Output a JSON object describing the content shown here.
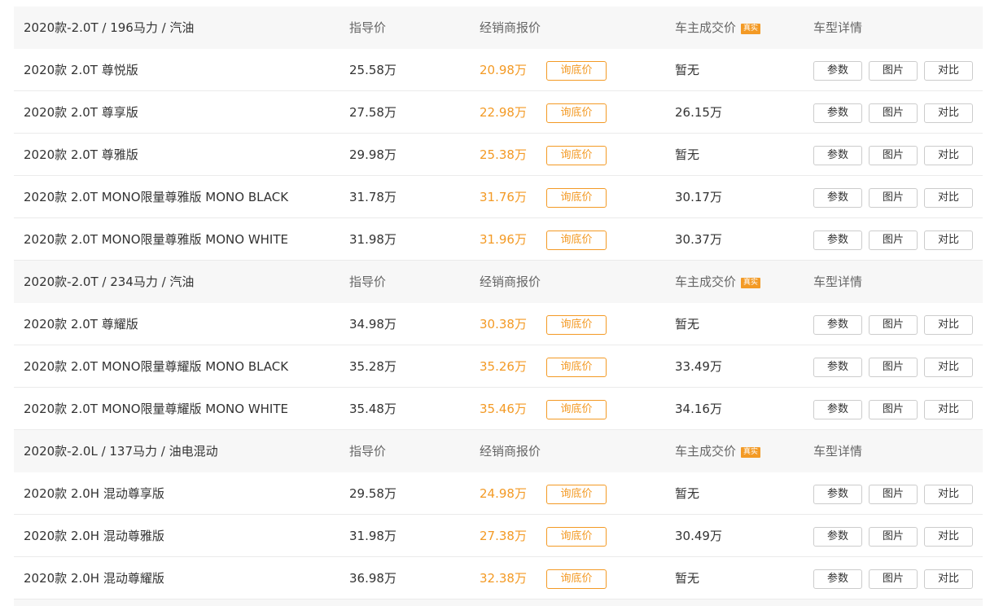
{
  "labels": {
    "guide": "指导价",
    "dealer": "经销商报价",
    "owner": "车主成交价",
    "badge": "真实",
    "detail": "车型详情",
    "ask": "询底价",
    "params": "参数",
    "photos": "图片",
    "compare": "对比"
  },
  "colors": {
    "accent": "#f39a25",
    "header_bg": "#f7f7f7"
  },
  "groups": [
    {
      "title": "2020款-2.0T / 196马力 / 汽油",
      "rows": [
        {
          "name": "2020款 2.0T 尊悦版",
          "guide": "25.58万",
          "dealer": "20.98万",
          "owner": "暂无"
        },
        {
          "name": "2020款 2.0T 尊享版",
          "guide": "27.58万",
          "dealer": "22.98万",
          "owner": "26.15万"
        },
        {
          "name": "2020款 2.0T 尊雅版",
          "guide": "29.98万",
          "dealer": "25.38万",
          "owner": "暂无"
        },
        {
          "name": "2020款 2.0T MONO限量尊雅版 MONO BLACK",
          "guide": "31.78万",
          "dealer": "31.76万",
          "owner": "30.17万"
        },
        {
          "name": "2020款 2.0T MONO限量尊雅版 MONO WHITE",
          "guide": "31.98万",
          "dealer": "31.96万",
          "owner": "30.37万"
        }
      ]
    },
    {
      "title": "2020款-2.0T / 234马力 / 汽油",
      "rows": [
        {
          "name": "2020款 2.0T 尊耀版",
          "guide": "34.98万",
          "dealer": "30.38万",
          "owner": "暂无"
        },
        {
          "name": "2020款 2.0T MONO限量尊耀版 MONO BLACK",
          "guide": "35.28万",
          "dealer": "35.26万",
          "owner": "33.49万"
        },
        {
          "name": "2020款 2.0T MONO限量尊耀版 MONO WHITE",
          "guide": "35.48万",
          "dealer": "35.46万",
          "owner": "34.16万"
        }
      ]
    },
    {
      "title": "2020款-2.0L / 137马力 / 油电混动",
      "rows": [
        {
          "name": "2020款 2.0H 混动尊享版",
          "guide": "29.58万",
          "dealer": "24.98万",
          "owner": "暂无"
        },
        {
          "name": "2020款 2.0H 混动尊雅版",
          "guide": "31.98万",
          "dealer": "27.38万",
          "owner": "30.49万"
        },
        {
          "name": "2020款 2.0H 混动尊耀版",
          "guide": "36.98万",
          "dealer": "32.38万",
          "owner": "暂无"
        }
      ]
    }
  ]
}
